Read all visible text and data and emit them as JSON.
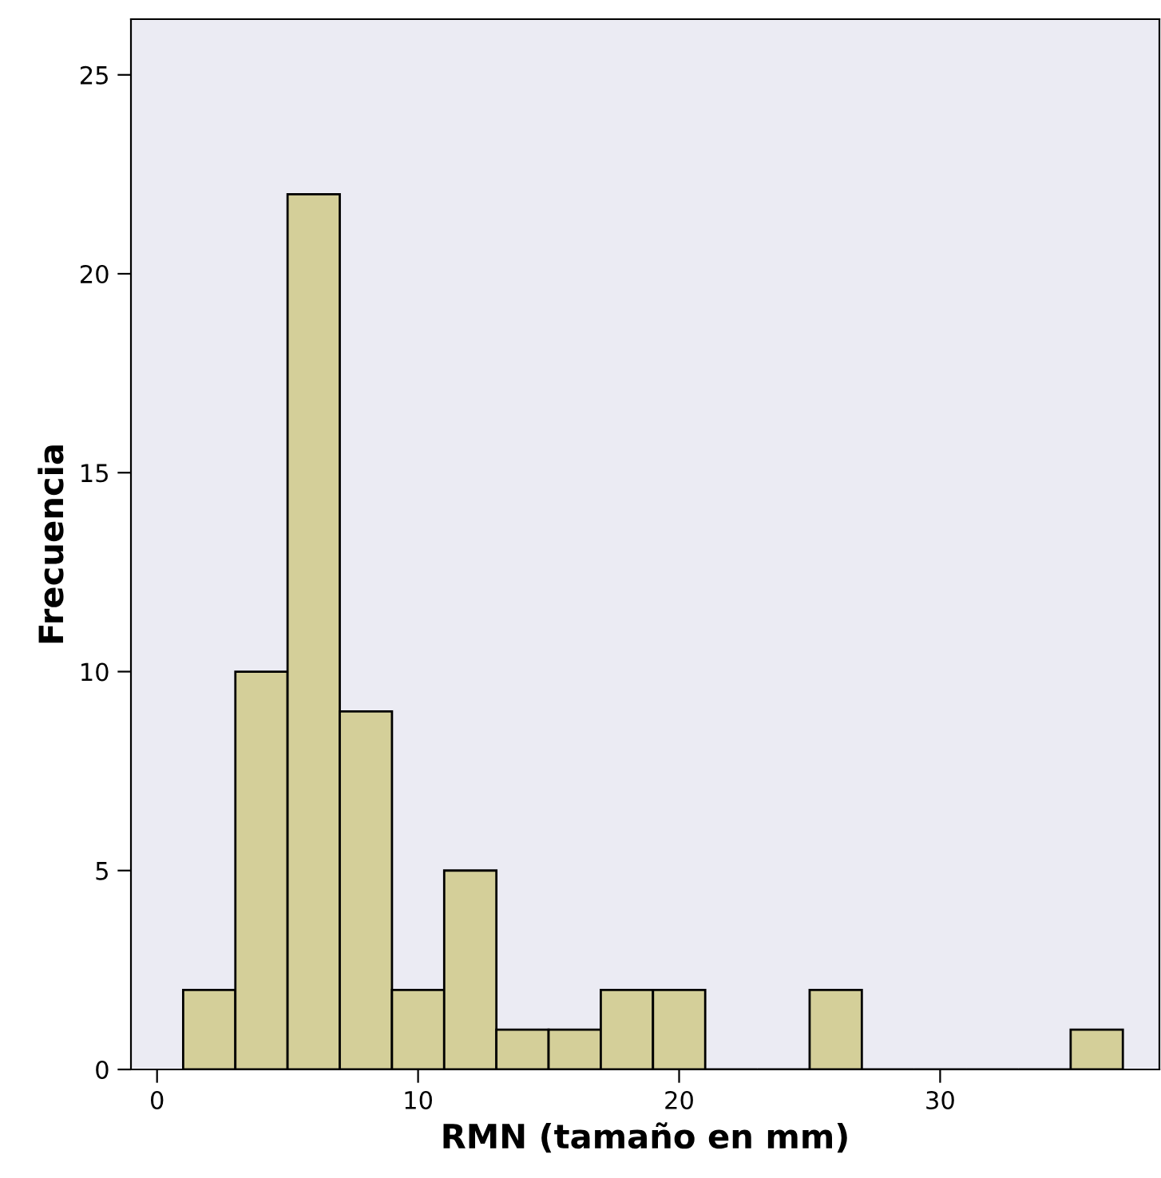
{
  "chart_data": {
    "type": "histogram",
    "xlabel": "RMN (tamaño en mm)",
    "ylabel": "Frecuencia",
    "bins": [
      1,
      3,
      5,
      7,
      9,
      11,
      13,
      15,
      17,
      19,
      21,
      23,
      25,
      27,
      29,
      31,
      33,
      35,
      37
    ],
    "values": [
      2,
      10,
      22,
      9,
      2,
      5,
      1,
      1,
      2,
      2,
      0,
      0,
      2,
      0,
      0,
      0,
      0,
      1
    ],
    "color": "#d4cf99",
    "xlim": [
      -1,
      38.4
    ],
    "ylim": [
      0,
      26.4
    ],
    "xticks": [
      0,
      10,
      20,
      30
    ],
    "yticks": [
      0,
      5,
      10,
      15,
      20,
      25
    ],
    "grid": false
  }
}
